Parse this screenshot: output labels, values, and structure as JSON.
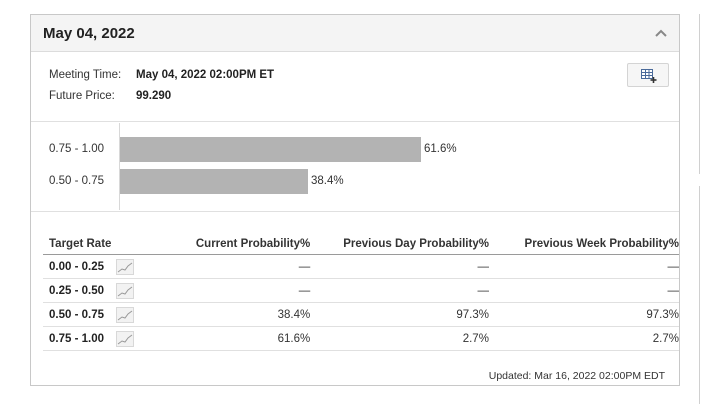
{
  "header": {
    "title": "May 04, 2022"
  },
  "meeting": {
    "time_label": "Meeting Time:",
    "time_value": "May 04, 2022 02:00PM ET",
    "price_label": "Future Price:",
    "price_value": "99.290"
  },
  "chart_data": {
    "type": "bar",
    "orientation": "horizontal",
    "categories": [
      "0.75 - 1.00",
      "0.50 - 0.75"
    ],
    "values": [
      61.6,
      38.4
    ],
    "value_labels": [
      "61.6%",
      "38.4%"
    ],
    "xlim": [
      0,
      100
    ]
  },
  "table": {
    "headers": [
      "Target Rate",
      "Current Probability%",
      "Previous Day Probability%",
      "Previous Week Probability%"
    ],
    "rows": [
      {
        "rate": "0.00 - 0.25",
        "current": "—",
        "prev_day": "—",
        "prev_week": "—"
      },
      {
        "rate": "0.25 - 0.50",
        "current": "—",
        "prev_day": "—",
        "prev_week": "—"
      },
      {
        "rate": "0.50 - 0.75",
        "current": "38.4%",
        "prev_day": "97.3%",
        "prev_week": "97.3%"
      },
      {
        "rate": "0.75 - 1.00",
        "current": "61.6%",
        "prev_day": "2.7%",
        "prev_week": "2.7%"
      }
    ]
  },
  "footer": {
    "updated": "Updated: Mar 16, 2022 02:00PM EDT"
  },
  "icons": {
    "collapse": "chevron-up-icon",
    "export": "table-export-icon",
    "sparkline": "sparkline-icon"
  },
  "colors": {
    "bar": "#b3b3b3",
    "header_bg": "#f4f4f4"
  }
}
